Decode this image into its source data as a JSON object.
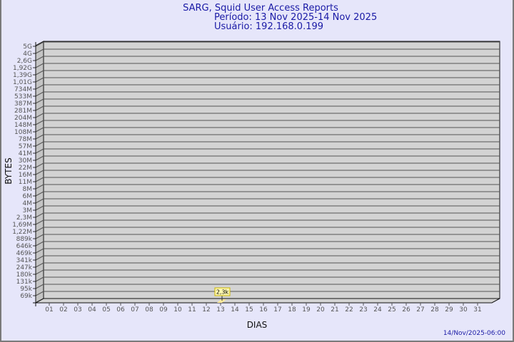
{
  "chart_data": {
    "type": "bar",
    "title": "SARG, Squid User Access Reports",
    "subtitle_period": "Período: 13 Nov 2025-14 Nov 2025",
    "subtitle_user": "Usuário: 192.168.0.199",
    "xlabel": "DIAS",
    "ylabel": "BYTES",
    "y_scale": "log",
    "y_tick_labels": [
      "5G",
      "4G",
      "2,6G",
      "1,92G",
      "1,39G",
      "1,01G",
      "734M",
      "533M",
      "387M",
      "281M",
      "204M",
      "148M",
      "108M",
      "78M",
      "57M",
      "41M",
      "30M",
      "22M",
      "16M",
      "11M",
      "8M",
      "6M",
      "4M",
      "3M",
      "2,3M",
      "1,69M",
      "1,22M",
      "889k",
      "646k",
      "469k",
      "341k",
      "247k",
      "180k",
      "131k",
      "95k",
      "69k"
    ],
    "categories": [
      "01",
      "02",
      "03",
      "04",
      "05",
      "06",
      "07",
      "08",
      "09",
      "10",
      "11",
      "12",
      "13",
      "14",
      "15",
      "16",
      "17",
      "18",
      "19",
      "20",
      "21",
      "22",
      "23",
      "24",
      "25",
      "26",
      "27",
      "28",
      "29",
      "30",
      "31"
    ],
    "bars": [
      {
        "day": "13",
        "value": 2300,
        "label": "2,3k"
      }
    ],
    "grid": true,
    "colors": {
      "background": "#e6e6fa",
      "plot": "#d3d3d3",
      "bar": "#ffe99a",
      "title": "#1a1aa6"
    }
  },
  "footer": {
    "timestamp": "14/Nov/2025-06:00"
  }
}
